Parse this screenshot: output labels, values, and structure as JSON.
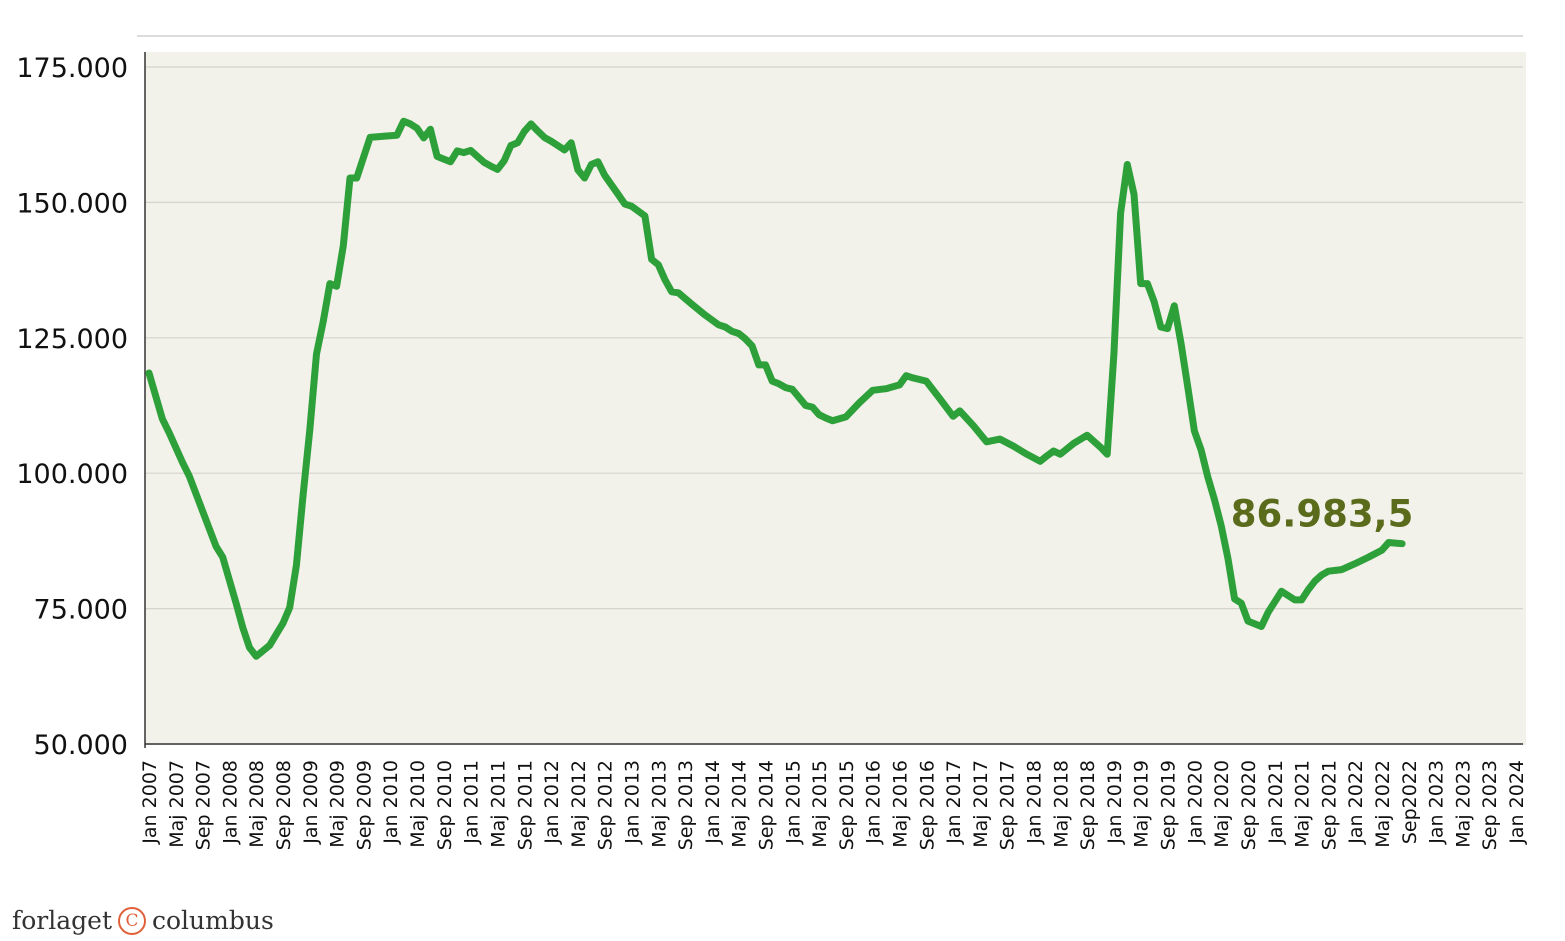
{
  "chart_data": {
    "type": "line",
    "title": "",
    "xlabel": "",
    "ylabel": "",
    "ylim": [
      50000,
      175000
    ],
    "y_ticks": [
      "50.000",
      "75.000",
      "100.000",
      "125.000",
      "150.000",
      "175.000"
    ],
    "y_tick_values": [
      50000,
      75000,
      100000,
      125000,
      150000,
      175000
    ],
    "grid": "horizontal",
    "x_tick_labels": [
      "Jan 2007",
      "Maj 2007",
      "Sep 2007",
      "Jan 2008",
      "Maj 2008",
      "Sep 2008",
      "Jan 2009",
      "Maj 2009",
      "Sep 2009",
      "Jan 2010",
      "Maj 2010",
      "Sep 2010",
      "Jan 2011",
      "Maj 2011",
      "Sep 2011",
      "Jan 2012",
      "Maj 2012",
      "Sep 2012",
      "Jan 2013",
      "Maj 2013",
      "Sep 2013",
      "Jan 2014",
      "Maj 2014",
      "Sep 2014",
      "Jan 2015",
      "Maj 2015",
      "Sep 2015",
      "Jan 2016",
      "Maj 2016",
      "Sep 2016",
      "Jan 2017",
      "Maj 2017",
      "Sep 2017",
      "Jan 2018",
      "Maj 2018",
      "Sep 2018",
      "Jan 2019",
      "Maj 2019",
      "Sep 2019",
      "Jan 2020",
      "Maj 2020",
      "Sep 2020",
      "Jan 2021",
      "Maj 2021",
      "Sep 2021",
      "Jan 2022",
      "Maj 2022",
      "Sep2022",
      "Jan 2023",
      "Maj 2023",
      "Sep 2023",
      "Jan 2024"
    ],
    "series": [
      {
        "color": "#2ea03a",
        "points": [
          [
            0,
            118500
          ],
          [
            2,
            110000
          ],
          [
            3,
            107500
          ],
          [
            5,
            102000
          ],
          [
            6,
            99500
          ],
          [
            8,
            93000
          ],
          [
            10,
            86500
          ],
          [
            11,
            84500
          ],
          [
            13,
            76000
          ],
          [
            14,
            71500
          ],
          [
            15,
            67800
          ],
          [
            16,
            66200
          ],
          [
            18,
            68200
          ],
          [
            20,
            72300
          ],
          [
            21,
            75200
          ],
          [
            22,
            83000
          ],
          [
            23,
            96000
          ],
          [
            24,
            108000
          ],
          [
            25,
            122000
          ],
          [
            26,
            128000
          ],
          [
            27,
            135000
          ],
          [
            28,
            134500
          ],
          [
            29,
            142000
          ],
          [
            30,
            154500
          ],
          [
            31,
            154500
          ],
          [
            33,
            162000
          ],
          [
            35,
            162200
          ],
          [
            37,
            162400
          ],
          [
            38,
            165000
          ],
          [
            39,
            164500
          ],
          [
            40,
            163700
          ],
          [
            41,
            161900
          ],
          [
            42,
            163500
          ],
          [
            43,
            158500
          ],
          [
            44,
            158000
          ],
          [
            45,
            157500
          ],
          [
            46,
            159500
          ],
          [
            47,
            159200
          ],
          [
            48,
            159600
          ],
          [
            49,
            158500
          ],
          [
            50,
            157400
          ],
          [
            51,
            156700
          ],
          [
            52,
            156100
          ],
          [
            53,
            157700
          ],
          [
            54,
            160500
          ],
          [
            55,
            161000
          ],
          [
            56,
            163100
          ],
          [
            57,
            164500
          ],
          [
            58,
            163200
          ],
          [
            59,
            162000
          ],
          [
            60,
            161300
          ],
          [
            62,
            159700
          ],
          [
            63,
            161000
          ],
          [
            64,
            156000
          ],
          [
            65,
            154500
          ],
          [
            66,
            157000
          ],
          [
            67,
            157500
          ],
          [
            68,
            155000
          ],
          [
            70,
            151500
          ],
          [
            71,
            149700
          ],
          [
            72,
            149300
          ],
          [
            74,
            147500
          ],
          [
            75,
            139500
          ],
          [
            76,
            138500
          ],
          [
            77,
            135700
          ],
          [
            78,
            133500
          ],
          [
            79,
            133300
          ],
          [
            81,
            131200
          ],
          [
            83,
            129200
          ],
          [
            85,
            127400
          ],
          [
            86,
            127000
          ],
          [
            87,
            126200
          ],
          [
            88,
            125800
          ],
          [
            89,
            124800
          ],
          [
            90,
            123500
          ],
          [
            91,
            120000
          ],
          [
            92,
            120000
          ],
          [
            93,
            117000
          ],
          [
            94,
            116500
          ],
          [
            95,
            115800
          ],
          [
            96,
            115500
          ],
          [
            97,
            114000
          ],
          [
            98,
            112500
          ],
          [
            99,
            112200
          ],
          [
            100,
            110800
          ],
          [
            101,
            110200
          ],
          [
            102,
            109700
          ],
          [
            104,
            110400
          ],
          [
            106,
            113000
          ],
          [
            108,
            115300
          ],
          [
            110,
            115600
          ],
          [
            112,
            116300
          ],
          [
            113,
            118000
          ],
          [
            114,
            117600
          ],
          [
            116,
            117000
          ],
          [
            118,
            113800
          ],
          [
            120,
            110500
          ],
          [
            121,
            111500
          ],
          [
            123,
            108800
          ],
          [
            125,
            105800
          ],
          [
            127,
            106300
          ],
          [
            129,
            105000
          ],
          [
            131,
            103500
          ],
          [
            133,
            102200
          ],
          [
            134,
            103200
          ],
          [
            135,
            104100
          ],
          [
            136,
            103500
          ],
          [
            138,
            105500
          ],
          [
            140,
            107000
          ],
          [
            142,
            104800
          ],
          [
            143,
            103500
          ],
          [
            144,
            122000
          ],
          [
            145,
            148000
          ],
          [
            146,
            157000
          ],
          [
            147,
            151500
          ],
          [
            148,
            135000
          ],
          [
            149,
            135000
          ],
          [
            150,
            131700
          ],
          [
            151,
            127000
          ],
          [
            152,
            126700
          ],
          [
            153,
            130900
          ],
          [
            154,
            124000
          ],
          [
            155,
            116000
          ],
          [
            156,
            107800
          ],
          [
            157,
            104300
          ],
          [
            158,
            99300
          ],
          [
            159,
            95100
          ],
          [
            160,
            90300
          ],
          [
            161,
            84300
          ],
          [
            162,
            76800
          ],
          [
            163,
            76000
          ],
          [
            164,
            72700
          ],
          [
            166,
            71700
          ],
          [
            167,
            74300
          ],
          [
            169,
            78200
          ],
          [
            171,
            76600
          ],
          [
            172,
            76600
          ],
          [
            173,
            78500
          ],
          [
            174,
            80100
          ],
          [
            175,
            81200
          ],
          [
            176,
            81900
          ],
          [
            178,
            82200
          ],
          [
            180,
            83300
          ],
          [
            182,
            84500
          ],
          [
            184,
            85800
          ],
          [
            185,
            87200
          ],
          [
            187,
            86983.5
          ]
        ]
      }
    ],
    "annotation": {
      "text": "86.983,5",
      "color": "#5a6b1c"
    }
  },
  "branding": {
    "left": "forlaget",
    "symbol": "C",
    "right": "columbus"
  }
}
